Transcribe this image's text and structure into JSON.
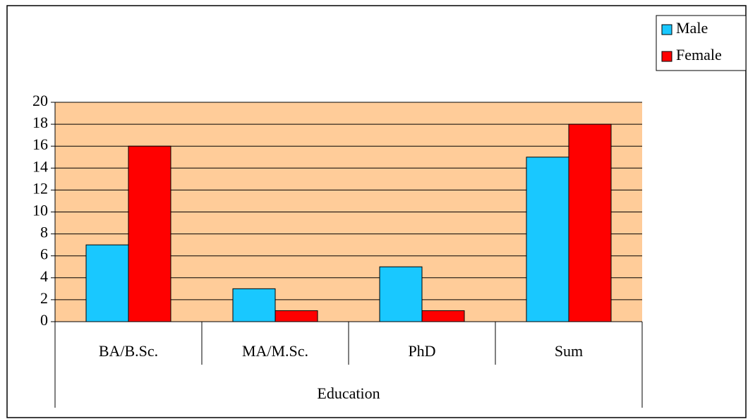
{
  "chart_data": {
    "type": "bar",
    "x_label": "Education",
    "categories": [
      "BA/B.Sc.",
      "MA/M.Sc.",
      "PhD",
      "Sum"
    ],
    "series": [
      {
        "name": "Male",
        "color": "#19c8ff",
        "values": [
          7,
          3,
          5,
          15
        ]
      },
      {
        "name": "Female",
        "color": "#ff0000",
        "values": [
          16,
          1,
          1,
          18
        ]
      }
    ],
    "ylim": [
      0,
      20
    ],
    "yticks": [
      0,
      2,
      4,
      6,
      8,
      10,
      12,
      14,
      16,
      18,
      20
    ],
    "grid": true,
    "plot_background": "#ffcc99",
    "legend": "top-right"
  }
}
